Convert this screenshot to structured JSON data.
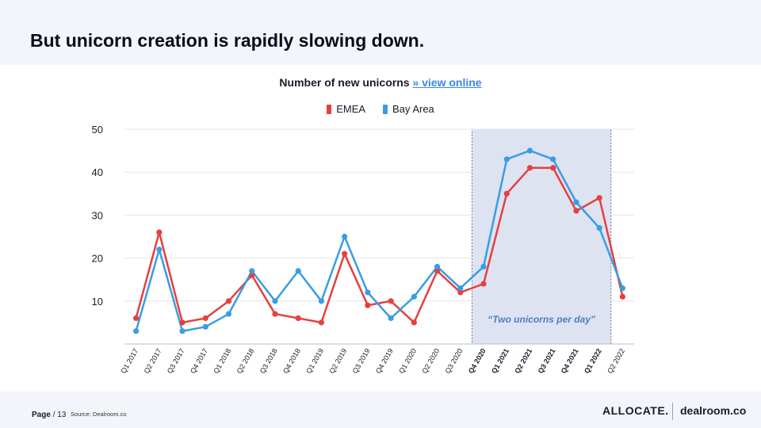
{
  "slide": {
    "title": "But unicorn creation is rapidly slowing down.",
    "page_label": "Page",
    "page_number": "/ 13",
    "source": "Source: Dealroom.co",
    "logo_left": "ALLOCATE.",
    "logo_right": "dealroom.co"
  },
  "chart_data": {
    "type": "line",
    "title": "Number of new unicorns",
    "title_link": "» view online",
    "categories": [
      "Q1 2017",
      "Q2 2017",
      "Q3 2017",
      "Q4 2017",
      "Q1 2018",
      "Q2 2018",
      "Q3 2018",
      "Q4 2018",
      "Q1 2019",
      "Q2 2019",
      "Q3 2019",
      "Q4 2019",
      "Q1 2020",
      "Q2 2020",
      "Q3 2020",
      "Q4 2020",
      "Q1 2021",
      "Q2 2021",
      "Q3 2021",
      "Q4 2021",
      "Q1 2022",
      "Q2 2022"
    ],
    "bold_categories": [
      "Q4 2020",
      "Q1 2021",
      "Q2 2021",
      "Q3 2021",
      "Q4 2021",
      "Q1 2022"
    ],
    "series": [
      {
        "name": "EMEA",
        "color": "#e5403f",
        "values": [
          6,
          26,
          5,
          6,
          10,
          16,
          7,
          6,
          5,
          21,
          9,
          10,
          5,
          17,
          12,
          14,
          35,
          41,
          41,
          31,
          34,
          11
        ]
      },
      {
        "name": "Bay Area",
        "color": "#3a9de3",
        "values": [
          3,
          22,
          3,
          4,
          7,
          17,
          10,
          17,
          10,
          25,
          12,
          6,
          11,
          18,
          13,
          18,
          43,
          45,
          43,
          33,
          27,
          13
        ]
      }
    ],
    "y_ticks": [
      10,
      20,
      30,
      40,
      50
    ],
    "ylim": [
      0,
      50
    ],
    "grid": true,
    "legend_position": "top-center",
    "highlight": {
      "from": "Q4 2020",
      "to": "Q1 2022",
      "label": "“Two unicorns per day”",
      "fill": "#dde3f1"
    }
  }
}
